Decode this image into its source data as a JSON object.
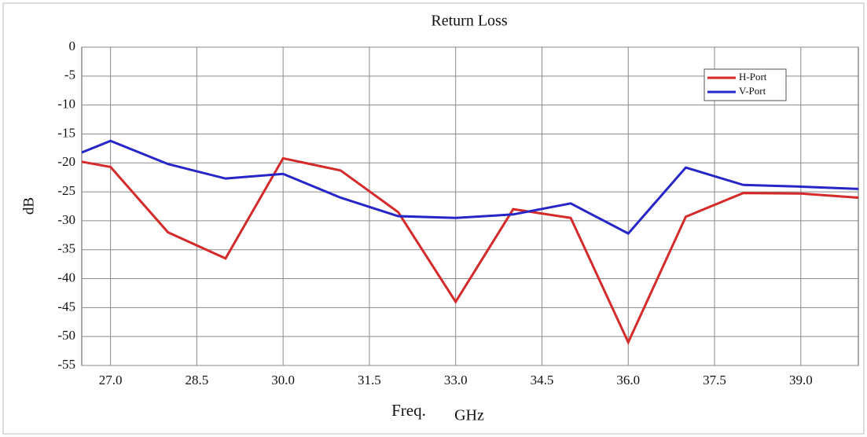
{
  "chart_data": {
    "type": "line",
    "title": "Return Loss",
    "ylabel": "dB",
    "xlabel": "Freq.",
    "xunit": "GHz",
    "x": [
      26.5,
      27,
      28,
      29,
      30,
      31,
      32,
      33,
      34,
      35,
      36,
      37,
      38,
      39,
      40
    ],
    "series": [
      {
        "name": "H-Port",
        "color": "#d42a2a",
        "values": [
          -19.8,
          -20.7,
          -32,
          -36.5,
          -19.2,
          -21.3,
          -28.5,
          -44,
          -28,
          -29.5,
          -51,
          -29.3,
          -25.2,
          -25.3,
          -26
        ]
      },
      {
        "name": "V-Port",
        "color": "#2626c8",
        "values": [
          -18.2,
          -16.2,
          -20.2,
          -22.7,
          -21.9,
          -26,
          -29.2,
          -29.5,
          -28.9,
          -27,
          -32.2,
          -20.8,
          -23.8,
          -24.1,
          -24.5
        ]
      }
    ],
    "xlim": [
      26.5,
      40
    ],
    "xticks": [
      {
        "value": 27,
        "label": "27.0"
      },
      28.5,
      {
        "value": 30,
        "label": "30.0"
      },
      31.5,
      {
        "value": 33,
        "label": "33.0"
      },
      34.5,
      {
        "value": 36,
        "label": "36.0"
      },
      37.5,
      {
        "value": 39,
        "label": "39.0"
      }
    ],
    "ylim": [
      -55,
      0
    ],
    "yticks": [
      0,
      -5,
      -10,
      -15,
      -20,
      -25,
      -30,
      -35,
      -40,
      -45,
      -50,
      -55
    ],
    "grid": true,
    "legend": "upper right"
  }
}
